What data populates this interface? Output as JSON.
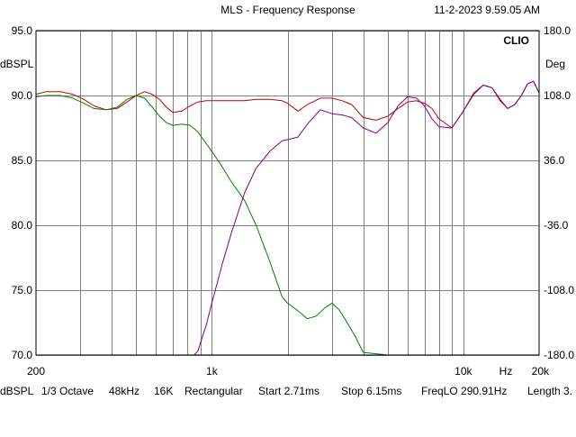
{
  "header": {
    "title": "MLS - Frequency Response",
    "timestamp": "11-2-2023 9.59.05 AM",
    "brand": "CLIO"
  },
  "footer": {
    "items": [
      "dBSPL",
      "1/3 Octave",
      "48kHz",
      "16K",
      "Rectangular",
      "Start 2.71ms",
      "Stop 6.15ms",
      "FreqLO 290.91Hz",
      "Length 3."
    ]
  },
  "colors": {
    "background": "#ffffff",
    "grid": "#808080",
    "frame": "#000000",
    "series_red": "#c00000",
    "series_green": "#008000",
    "series_purple": "#800080"
  },
  "chart_data": {
    "type": "line",
    "title": "MLS - Frequency Response",
    "x_scale": "log",
    "xlim": [
      200,
      20000
    ],
    "x_ticks": [
      {
        "value": 200,
        "label": "200"
      },
      {
        "value": 1000,
        "label": "1k"
      },
      {
        "value": 10000,
        "label": "10k"
      },
      {
        "value": 20000,
        "label": "20k"
      }
    ],
    "x_unit_label": "Hz",
    "x_gridlines": [
      300,
      400,
      500,
      600,
      700,
      800,
      900,
      1000,
      2000,
      3000,
      4000,
      5000,
      6000,
      7000,
      8000,
      9000,
      10000
    ],
    "ylabel_left": "dBSPL",
    "ylim_left": [
      70,
      95
    ],
    "y_ticks_left": [
      "70.0",
      "75.0",
      "80.0",
      "85.0",
      "90.0",
      "95.0"
    ],
    "ylabel_right": "Deg",
    "ylim_right": [
      -180,
      180
    ],
    "y_ticks_right": [
      "-180.0",
      "-108.0",
      "-36.0",
      "36.0",
      "108.0",
      "180.0"
    ],
    "grid": true,
    "series": [
      {
        "color": "#c00000",
        "x": [
          200,
          220,
          250,
          280,
          310,
          340,
          380,
          420,
          460,
          500,
          540,
          580,
          620,
          660,
          700,
          760,
          820,
          880,
          950,
          1000,
          1100,
          1200,
          1350,
          1500,
          1700,
          1900,
          2000,
          2200,
          2400,
          2700,
          3000,
          3300,
          3600,
          4000,
          4500,
          5000,
          5500,
          6000,
          6500,
          7000,
          7500,
          8000,
          9000,
          10000,
          11000,
          12000,
          13000,
          14000,
          15000,
          16000,
          17000,
          18000,
          19000,
          20000
        ],
        "values": [
          90.1,
          90.3,
          90.3,
          90.1,
          89.7,
          89.2,
          88.9,
          89.0,
          89.5,
          90.0,
          90.3,
          90.1,
          89.7,
          89.1,
          88.7,
          88.8,
          89.2,
          89.5,
          89.6,
          89.6,
          89.6,
          89.6,
          89.6,
          89.7,
          89.7,
          89.6,
          89.4,
          88.8,
          89.3,
          89.8,
          89.8,
          89.6,
          89.3,
          88.3,
          88.1,
          88.4,
          89.0,
          89.5,
          89.6,
          89.4,
          89.0,
          88.2,
          87.5,
          88.8,
          90.2,
          90.8,
          90.6,
          89.6,
          89.0,
          89.3,
          90.0,
          90.9,
          91.1,
          90.2
        ]
      },
      {
        "color": "#008000",
        "x": [
          200,
          220,
          250,
          280,
          310,
          340,
          380,
          420,
          460,
          500,
          540,
          580,
          620,
          660,
          700,
          760,
          820,
          880,
          950,
          1000,
          1100,
          1200,
          1350,
          1500,
          1700,
          1900,
          2000,
          2200,
          2400,
          2600,
          2800,
          3000,
          3200,
          3400,
          3700,
          4000,
          5000,
          10000,
          20000
        ],
        "values": [
          89.9,
          90.0,
          90.0,
          89.8,
          89.4,
          89.0,
          88.9,
          89.1,
          89.7,
          90.0,
          89.8,
          89.1,
          88.4,
          87.9,
          87.7,
          87.8,
          87.7,
          87.2,
          86.3,
          85.7,
          84.5,
          83.3,
          81.9,
          80.0,
          77.2,
          74.5,
          74.0,
          73.4,
          72.8,
          73.0,
          73.6,
          74.0,
          73.5,
          72.7,
          71.5,
          70.2,
          70.0,
          70.0,
          70.0
        ]
      },
      {
        "color": "#800080",
        "x": [
          200,
          300,
          500,
          700,
          800,
          850,
          880,
          950,
          1000,
          1100,
          1200,
          1350,
          1500,
          1700,
          1900,
          2000,
          2200,
          2400,
          2700,
          3000,
          3300,
          3600,
          4000,
          4500,
          5000,
          5500,
          6000,
          6500,
          7000,
          7500,
          8000,
          9000,
          10000,
          11000,
          12000,
          13000,
          14000,
          15000,
          16000,
          17000,
          18000,
          19000,
          20000
        ],
        "values": [
          70.0,
          70.0,
          70.0,
          70.0,
          70.0,
          70.0,
          70.3,
          72.3,
          74.0,
          77.0,
          79.5,
          82.5,
          84.4,
          85.7,
          86.5,
          86.6,
          86.8,
          87.8,
          88.9,
          88.6,
          88.5,
          88.3,
          87.5,
          87.1,
          87.9,
          89.2,
          89.9,
          89.8,
          89.2,
          88.2,
          87.6,
          87.5,
          88.8,
          90.1,
          90.8,
          90.6,
          89.7,
          89.0,
          89.3,
          90.0,
          90.9,
          91.1,
          90.2
        ]
      }
    ]
  }
}
